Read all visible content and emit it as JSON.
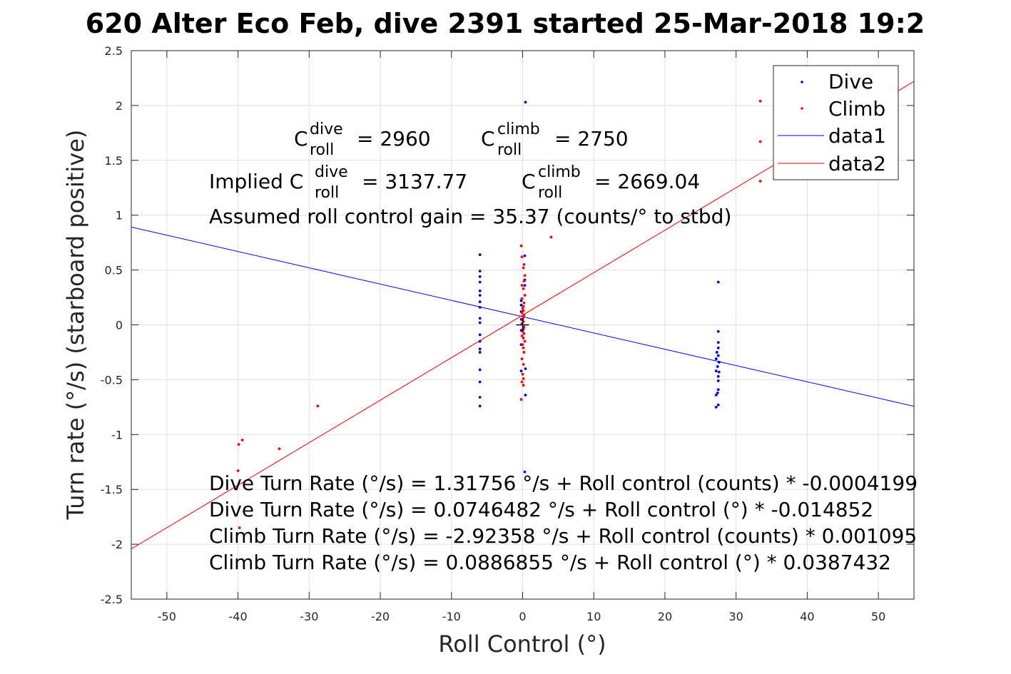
{
  "chart_data": {
    "type": "scatter",
    "title": "620 Alter Eco Feb, dive 2391 started 25-Mar-2018 19:2",
    "xlabel": "Roll Control (°)",
    "ylabel": "Turn rate (°/s) (starboard positive)",
    "xlim": [
      -55,
      55
    ],
    "ylim": [
      -2.5,
      2.5
    ],
    "xticks": [
      -50,
      -40,
      -30,
      -20,
      -10,
      0,
      10,
      20,
      30,
      40,
      50
    ],
    "yticks": [
      -2.5,
      -2,
      -1.5,
      -1,
      -0.5,
      0,
      0.5,
      1,
      1.5,
      2,
      2.5
    ],
    "grid": true,
    "legend_position": "top-right",
    "legend": [
      "Dive",
      "Climb",
      "data1",
      "data2"
    ],
    "series": [
      {
        "name": "Dive",
        "kind": "points",
        "color": "#0000ff",
        "points": [
          [
            -6,
            0.64
          ],
          [
            -6,
            0.49
          ],
          [
            -6,
            0.44
          ],
          [
            -6,
            0.39
          ],
          [
            -6,
            0.31
          ],
          [
            -6,
            0.27
          ],
          [
            -6,
            0.21
          ],
          [
            -6,
            0.16
          ],
          [
            -6,
            0.06
          ],
          [
            -6,
            0.02
          ],
          [
            -6,
            -0.09
          ],
          [
            -6,
            -0.15
          ],
          [
            -6,
            -0.22
          ],
          [
            -6,
            -0.25
          ],
          [
            -6,
            -0.41
          ],
          [
            -6,
            -0.52
          ],
          [
            -6,
            -0.66
          ],
          [
            -6,
            -0.74
          ],
          [
            -0.2,
            0.22
          ],
          [
            -0.2,
            0.18
          ],
          [
            -0.2,
            0.12
          ],
          [
            -0.2,
            0.05
          ],
          [
            -0.2,
            -0.05
          ],
          [
            -0.2,
            -0.18
          ],
          [
            -0.2,
            -0.42
          ],
          [
            0.4,
            2.03
          ],
          [
            0.3,
            0.63
          ],
          [
            0.3,
            0.41
          ],
          [
            0.3,
            0.36
          ],
          [
            0.4,
            -0.4
          ],
          [
            0.4,
            -0.64
          ],
          [
            0.3,
            -1.34
          ],
          [
            27.5,
            0.39
          ],
          [
            27.5,
            -0.06
          ],
          [
            27.5,
            -0.16
          ],
          [
            27.5,
            -0.21
          ],
          [
            27.3,
            -0.25
          ],
          [
            27.5,
            -0.28
          ],
          [
            27.2,
            -0.31
          ],
          [
            27.6,
            -0.34
          ],
          [
            27.4,
            -0.38
          ],
          [
            27.2,
            -0.42
          ],
          [
            27.6,
            -0.43
          ],
          [
            27.5,
            -0.47
          ],
          [
            27.5,
            -0.51
          ],
          [
            27.5,
            -0.59
          ],
          [
            27.4,
            -0.62
          ],
          [
            27.2,
            -0.64
          ],
          [
            27.5,
            -0.73
          ],
          [
            27.2,
            -0.75
          ]
        ]
      },
      {
        "name": "Climb",
        "kind": "points",
        "color": "#ff0000",
        "points": [
          [
            33.4,
            2.04
          ],
          [
            33.4,
            1.67
          ],
          [
            33.4,
            1.31
          ],
          [
            4,
            0.8
          ],
          [
            -0.2,
            0.72
          ],
          [
            -0.1,
            0.62
          ],
          [
            0.2,
            0.55
          ],
          [
            0.1,
            0.52
          ],
          [
            0.3,
            0.45
          ],
          [
            0.2,
            0.4
          ],
          [
            -0.1,
            0.36
          ],
          [
            0.1,
            0.33
          ],
          [
            0.3,
            0.27
          ],
          [
            -0.1,
            0.24
          ],
          [
            0.2,
            0.2
          ],
          [
            0.1,
            0.17
          ],
          [
            0,
            0.15
          ],
          [
            0.1,
            0.13
          ],
          [
            -0.1,
            0.11
          ],
          [
            0.2,
            0.09
          ],
          [
            0.1,
            0.07
          ],
          [
            0,
            0.05
          ],
          [
            0.1,
            0.03
          ],
          [
            -0.1,
            0.01
          ],
          [
            0.2,
            -0.02
          ],
          [
            0.1,
            -0.04
          ],
          [
            0,
            -0.06
          ],
          [
            0.2,
            -0.08
          ],
          [
            -0.1,
            -0.1
          ],
          [
            0.1,
            -0.12
          ],
          [
            0.3,
            -0.15
          ],
          [
            0,
            -0.18
          ],
          [
            0.1,
            -0.21
          ],
          [
            0.2,
            -0.25
          ],
          [
            -0.1,
            -0.31
          ],
          [
            0.1,
            -0.36
          ],
          [
            0,
            -0.45
          ],
          [
            0.1,
            -0.49
          ],
          [
            -0.1,
            -0.52
          ],
          [
            0.1,
            -0.55
          ],
          [
            -0.2,
            -0.68
          ],
          [
            -28.8,
            -0.74
          ],
          [
            -34.2,
            -1.13
          ],
          [
            -39.4,
            -1.05
          ],
          [
            -39.9,
            -1.09
          ],
          [
            -40,
            -1.33
          ],
          [
            -39.8,
            -1.85
          ]
        ]
      },
      {
        "name": "data1",
        "kind": "line",
        "color": "#0000ff",
        "slope": -0.014852,
        "intercept": 0.0746482
      },
      {
        "name": "data2",
        "kind": "line",
        "color": "#ff0000",
        "slope": 0.0387432,
        "intercept": 0.0886855
      }
    ],
    "marker_plus": [
      0,
      0
    ],
    "annotations": {
      "c_roll_dive_prefix": "C",
      "c_roll_dive_sup": "dive",
      "c_roll_dive_sub": "roll",
      "c_roll_dive_value": "= 2960",
      "c_roll_climb_prefix": "C",
      "c_roll_climb_sup": "climb",
      "c_roll_climb_sub": "roll",
      "c_roll_climb_value": "= 2750",
      "implied_prefix": "Implied C",
      "implied_dive_sup": "dive",
      "implied_dive_sub": "roll",
      "implied_dive_value": "= 3137.77",
      "implied_climb_prefix": "C",
      "implied_climb_sup": "climb",
      "implied_climb_sub": "roll",
      "implied_climb_value": "= 2669.04",
      "gain": "Assumed roll control gain = 35.37 (counts/° to stbd)",
      "eq1": "Dive Turn Rate (°/s) = 1.31756 °/s + Roll control (counts) * -0.0004199",
      "eq2": "Dive Turn Rate (°/s) = 0.0746482 °/s + Roll control (°) * -0.014852",
      "eq3": "Climb Turn Rate (°/s) = -2.92358 °/s + Roll control (counts) * 0.001095",
      "eq4": "Climb Turn Rate (°/s) = 0.0886855 °/s + Roll control (°) * 0.0387432"
    }
  }
}
